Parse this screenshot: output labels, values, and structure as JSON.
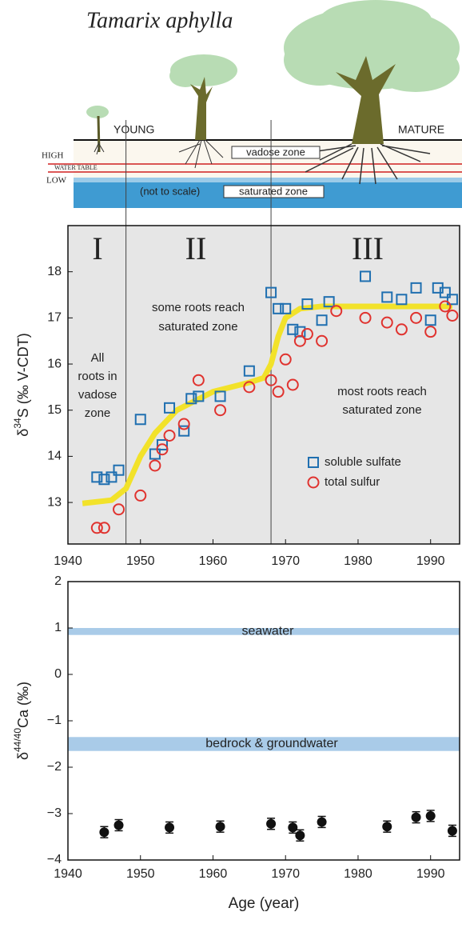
{
  "illustration": {
    "title": "Tamarix aphylla",
    "young": "YOUNG",
    "mature": "MATURE",
    "high": "HIGH",
    "water_table": "WATER TABLE",
    "low": "LOW",
    "vadose": "vadose zone",
    "scale_note": "(not to scale)",
    "saturated": "saturated zone"
  },
  "chart_data": [
    {
      "type": "scatter",
      "background": "#e6e6e6",
      "y_label": {
        "prefix": "δ",
        "sup": "34",
        "main": "S (‰ V-CDT)"
      },
      "xlim": [
        1940,
        1994
      ],
      "xticks": [
        1940,
        1950,
        1960,
        1970,
        1980,
        1990
      ],
      "ylim": [
        12.1,
        19
      ],
      "yticks": [
        13,
        14,
        15,
        16,
        17,
        18
      ],
      "dividers": [
        1948,
        1968
      ],
      "zones": [
        "I",
        "II",
        "III"
      ],
      "annotations": [
        [
          "All",
          "roots in",
          "vadose",
          "zone"
        ],
        [
          "some roots reach",
          "saturated zone"
        ],
        [
          "most roots reach",
          "saturated zone"
        ]
      ],
      "series": [
        {
          "type": "line",
          "color": "#f2e22a",
          "x": [
            1942,
            1946,
            1948,
            1950,
            1952,
            1955,
            1960,
            1965,
            1967,
            1968,
            1969,
            1970,
            1972,
            1975,
            1980,
            1993
          ],
          "values": [
            12.98,
            13.05,
            13.3,
            14.0,
            14.5,
            15.0,
            15.4,
            15.6,
            15.7,
            16.0,
            16.6,
            17.0,
            17.2,
            17.25,
            17.25,
            17.25
          ]
        },
        {
          "name": "soluble sulfate",
          "marker": "square",
          "color": "#1f6fb0",
          "x": [
            1944,
            1945,
            1946,
            1947,
            1950,
            1952,
            1953,
            1954,
            1956,
            1957,
            1958,
            1961,
            1965,
            1968,
            1969,
            1970,
            1971,
            1972,
            1973,
            1975,
            1976,
            1981,
            1984,
            1986,
            1988,
            1990,
            1991,
            1992,
            1993
          ],
          "values": [
            13.55,
            13.5,
            13.55,
            13.7,
            14.8,
            14.05,
            14.25,
            15.05,
            14.55,
            15.25,
            15.3,
            15.3,
            15.85,
            17.55,
            17.2,
            17.2,
            16.75,
            16.7,
            17.3,
            16.95,
            17.35,
            17.9,
            17.45,
            17.4,
            17.65,
            16.95,
            17.65,
            17.55,
            17.4
          ]
        },
        {
          "name": "total sulfur",
          "marker": "circle",
          "color": "#e0332f",
          "x": [
            1944,
            1945,
            1947,
            1950,
            1952,
            1953,
            1954,
            1956,
            1958,
            1961,
            1965,
            1968,
            1969,
            1970,
            1971,
            1972,
            1973,
            1975,
            1977,
            1981,
            1984,
            1986,
            1988,
            1990,
            1992,
            1993
          ],
          "values": [
            12.45,
            12.45,
            12.85,
            13.15,
            13.8,
            14.15,
            14.45,
            14.7,
            15.65,
            15.0,
            15.5,
            15.65,
            15.4,
            16.1,
            15.55,
            16.5,
            16.65,
            16.5,
            17.15,
            17.0,
            16.9,
            16.75,
            17.0,
            16.7,
            17.25,
            17.05
          ]
        }
      ]
    },
    {
      "type": "scatter",
      "background": "#ffffff",
      "y_label": {
        "prefix": "δ",
        "sup": "44/40",
        "main": "Ca (‰)"
      },
      "x_label": "Age (year)",
      "xlim": [
        1940,
        1994
      ],
      "xticks": [
        1940,
        1950,
        1960,
        1970,
        1980,
        1990
      ],
      "ylim": [
        -4,
        2
      ],
      "yticks": [
        {
          "value": -4,
          "label": "−4"
        },
        {
          "value": -3,
          "label": "−3"
        },
        {
          "value": -2,
          "label": "−2"
        },
        {
          "value": -1,
          "label": "−1"
        },
        0,
        1,
        2
      ],
      "bands": [
        {
          "label": "seawater",
          "range": [
            0.85,
            1.0
          ],
          "color": "#a9cbe8"
        },
        {
          "label": "bedrock & groundwater",
          "range": [
            -1.65,
            -1.35
          ],
          "color": "#a9cbe8"
        }
      ],
      "series": [
        {
          "marker": "circle",
          "color": "#111111",
          "x": [
            1945,
            1947,
            1954,
            1961,
            1968,
            1971,
            1972,
            1975,
            1984,
            1988,
            1990,
            1993
          ],
          "values": [
            -3.4,
            -3.25,
            -3.3,
            -3.28,
            -3.22,
            -3.3,
            -3.47,
            -3.18,
            -3.28,
            -3.08,
            -3.05,
            -3.37
          ],
          "errors": [
            0.12,
            0.12,
            0.12,
            0.12,
            0.12,
            0.12,
            0.12,
            0.12,
            0.12,
            0.12,
            0.12,
            0.12
          ]
        }
      ]
    }
  ]
}
